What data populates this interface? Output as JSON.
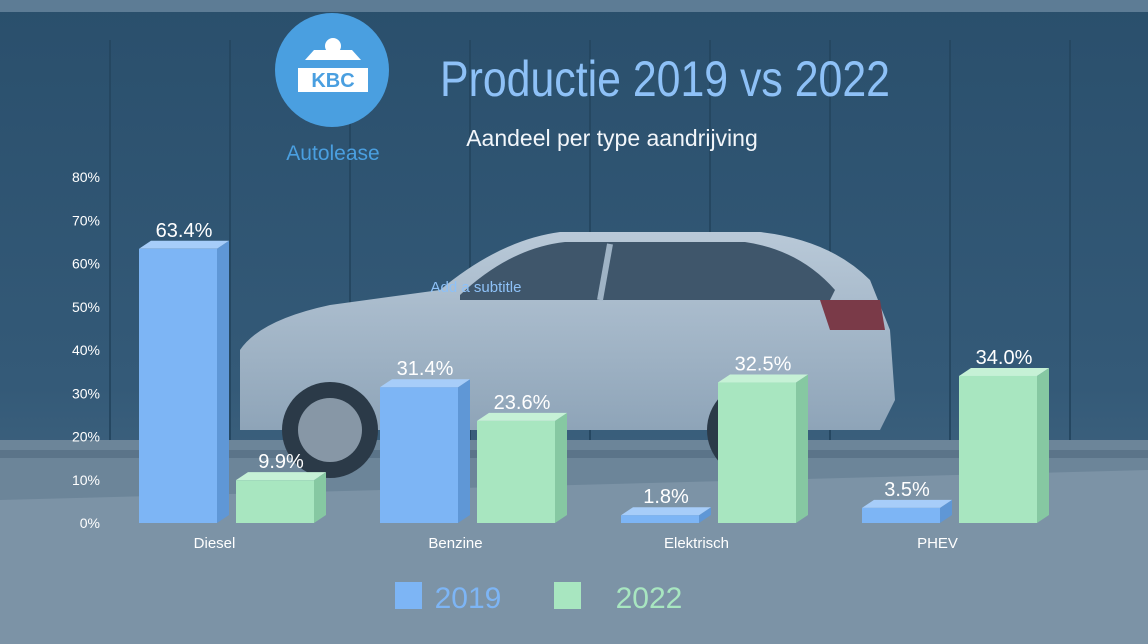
{
  "logo": {
    "brand": "KBC",
    "caption": "Autolease"
  },
  "header": {
    "title": "Productie 2019 vs 2022",
    "subtitle": "Aandeel per type aandrijving",
    "placeholder": "Add a subtitle"
  },
  "colors": {
    "series_2019": "#7db5f5",
    "series_2022": "#a8e6c0",
    "title": "#8ec1f7",
    "logo": "#4a9fe0"
  },
  "chart_data": {
    "type": "bar",
    "categories": [
      "Diesel",
      "Benzine",
      "Elektrisch",
      "PHEV"
    ],
    "series": [
      {
        "name": "2019",
        "values": [
          63.4,
          31.4,
          1.8,
          3.5
        ]
      },
      {
        "name": "2022",
        "values": [
          9.9,
          23.6,
          32.5,
          34.0
        ]
      }
    ],
    "data_labels": [
      [
        "63.4%",
        "31.4%",
        "1.8%",
        "3.5%"
      ],
      [
        "9.9%",
        "23.6%",
        "32.5%",
        "34.0%"
      ]
    ],
    "yticks": [
      "0%",
      "10%",
      "20%",
      "30%",
      "40%",
      "50%",
      "60%",
      "70%",
      "80%"
    ],
    "ylim": [
      0,
      80
    ],
    "grid": false,
    "legend": "bottom"
  }
}
